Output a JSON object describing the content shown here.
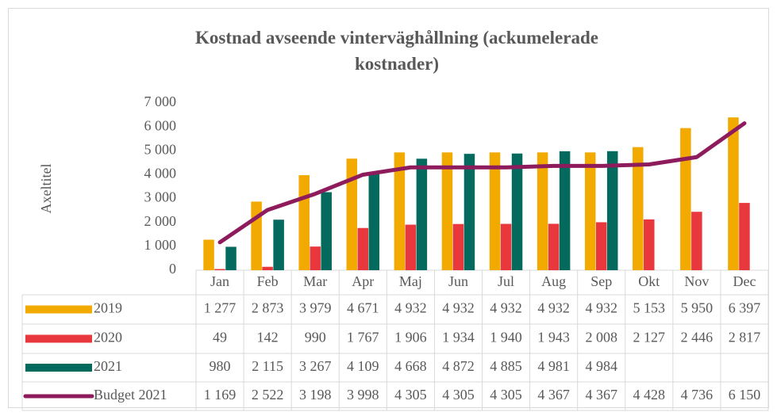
{
  "chart_data": {
    "type": "bar",
    "title": "Kostnad avseende vinterväghållning (ackumelerade kostnader)",
    "y_axis_label": "Axeltitel",
    "categories": [
      "Jan",
      "Feb",
      "Mar",
      "Apr",
      "Maj",
      "Jun",
      "Jul",
      "Aug",
      "Sep",
      "Okt",
      "Nov",
      "Dec"
    ],
    "series": [
      {
        "name": "2019",
        "type": "bar",
        "color": "#f2a900",
        "values": [
          1277,
          2873,
          3979,
          4671,
          4932,
          4932,
          4932,
          4932,
          4932,
          5153,
          5950,
          6397
        ],
        "value_labels": [
          "1 277",
          "2 873",
          "3 979",
          "4 671",
          "4 932",
          "4 932",
          "4 932",
          "4 932",
          "4 932",
          "5 153",
          "5 950",
          "6 397"
        ]
      },
      {
        "name": "2020",
        "type": "bar",
        "color": "#e8383d",
        "values": [
          49,
          142,
          990,
          1767,
          1906,
          1934,
          1940,
          1943,
          2008,
          2127,
          2446,
          2817
        ],
        "value_labels": [
          "49",
          "142",
          "990",
          "1 767",
          "1 906",
          "1 934",
          "1 940",
          "1 943",
          "2 008",
          "2 127",
          "2 446",
          "2 817"
        ]
      },
      {
        "name": "2021",
        "type": "bar",
        "color": "#046a5e",
        "values": [
          980,
          2115,
          3267,
          4109,
          4668,
          4872,
          4885,
          4981,
          4984,
          null,
          null,
          null
        ],
        "value_labels": [
          "980",
          "2 115",
          "3 267",
          "4 109",
          "4 668",
          "4 872",
          "4 885",
          "4 981",
          "4 984",
          null,
          null,
          null
        ]
      },
      {
        "name": "Budget 2021",
        "type": "line",
        "color": "#8e1b5c",
        "values": [
          1169,
          2522,
          3198,
          3998,
          4305,
          4305,
          4305,
          4367,
          4367,
          4428,
          4736,
          6150
        ],
        "value_labels": [
          "1 169",
          "2 522",
          "3 198",
          "3 998",
          "4 305",
          "4 305",
          "4 305",
          "4 367",
          "4 367",
          "4 428",
          "4 736",
          "6 150"
        ]
      }
    ],
    "ylim": [
      0,
      7000
    ],
    "yticks": [
      0,
      {
        "value": 1000,
        "label": "1 000"
      },
      {
        "value": 2000,
        "label": "2 000"
      },
      {
        "value": 3000,
        "label": "3 000"
      },
      {
        "value": 4000,
        "label": "4 000"
      },
      {
        "value": 5000,
        "label": "5 000"
      },
      {
        "value": 6000,
        "label": "6 000"
      },
      {
        "value": 7000,
        "label": "7 000"
      }
    ],
    "grid": false
  }
}
